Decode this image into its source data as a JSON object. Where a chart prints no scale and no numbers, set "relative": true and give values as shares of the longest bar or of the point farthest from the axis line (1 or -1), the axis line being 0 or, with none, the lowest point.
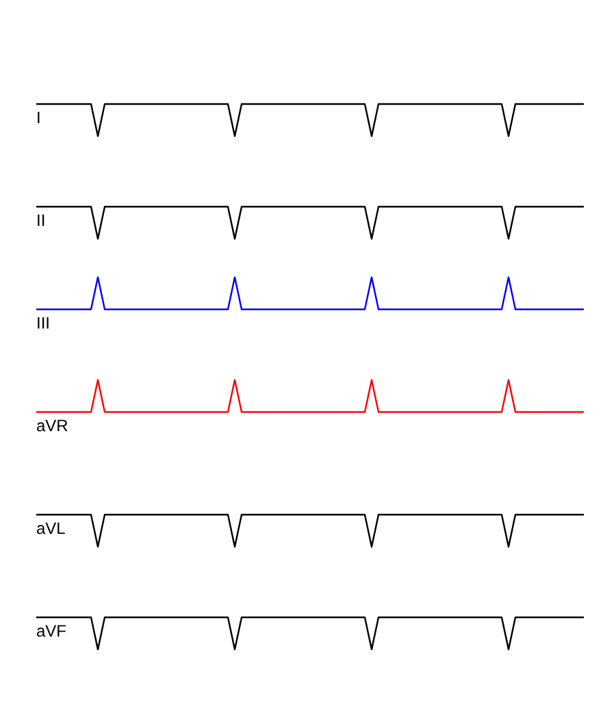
{
  "chart_data": [
    {
      "type": "line",
      "relative": true,
      "tick_labels": false,
      "grid": false,
      "categories": [
        null,
        null,
        null,
        null,
        null,
        null,
        null,
        null,
        null,
        null,
        null,
        null,
        null,
        null,
        null,
        null,
        null,
        null,
        null,
        null,
        null,
        null,
        null,
        null,
        null,
        null,
        null,
        null,
        null,
        null,
        null,
        null,
        null,
        null,
        null,
        null,
        null,
        null,
        null,
        null,
        null,
        null,
        null,
        null,
        null,
        null,
        null,
        null,
        null,
        null,
        null,
        null,
        null,
        null,
        null,
        null,
        null,
        null,
        null,
        null,
        null,
        null,
        null,
        null,
        null,
        null,
        null,
        null,
        null,
        null,
        null,
        null,
        null,
        null,
        null,
        null,
        null,
        null,
        null,
        null,
        null
      ],
      "series": [
        {
          "name": "I",
          "color": "#000000",
          "values": [
            1,
            1,
            1,
            1,
            1,
            1,
            1,
            1,
            1,
            0,
            1,
            1,
            1,
            1,
            1,
            1,
            1,
            1,
            1,
            1,
            1,
            1,
            1,
            1,
            1,
            1,
            1,
            1,
            1,
            0,
            1,
            1,
            1,
            1,
            1,
            1,
            1,
            1,
            1,
            1,
            1,
            1,
            1,
            1,
            1,
            1,
            1,
            1,
            1,
            0,
            1,
            1,
            1,
            1,
            1,
            1,
            1,
            1,
            1,
            1,
            1,
            1,
            1,
            1,
            1,
            1,
            1,
            1,
            1,
            0,
            1,
            1,
            1,
            1,
            1,
            1,
            1,
            1,
            1,
            1,
            1
          ]
        }
      ]
    },
    {
      "type": "line",
      "relative": true,
      "tick_labels": false,
      "grid": false,
      "categories": [
        null,
        null,
        null,
        null,
        null,
        null,
        null,
        null,
        null,
        null,
        null,
        null,
        null,
        null,
        null,
        null,
        null,
        null,
        null,
        null,
        null,
        null,
        null,
        null,
        null,
        null,
        null,
        null,
        null,
        null,
        null,
        null,
        null,
        null,
        null,
        null,
        null,
        null,
        null,
        null,
        null,
        null,
        null,
        null,
        null,
        null,
        null,
        null,
        null,
        null,
        null,
        null,
        null,
        null,
        null,
        null,
        null,
        null,
        null,
        null,
        null,
        null,
        null,
        null,
        null,
        null,
        null,
        null,
        null,
        null,
        null,
        null,
        null,
        null,
        null,
        null,
        null,
        null,
        null,
        null,
        null
      ],
      "series": [
        {
          "name": "II",
          "color": "#000000",
          "values": [
            1,
            1,
            1,
            1,
            1,
            1,
            1,
            1,
            1,
            0,
            1,
            1,
            1,
            1,
            1,
            1,
            1,
            1,
            1,
            1,
            1,
            1,
            1,
            1,
            1,
            1,
            1,
            1,
            1,
            0,
            1,
            1,
            1,
            1,
            1,
            1,
            1,
            1,
            1,
            1,
            1,
            1,
            1,
            1,
            1,
            1,
            1,
            1,
            1,
            0,
            1,
            1,
            1,
            1,
            1,
            1,
            1,
            1,
            1,
            1,
            1,
            1,
            1,
            1,
            1,
            1,
            1,
            1,
            1,
            0,
            1,
            1,
            1,
            1,
            1,
            1,
            1,
            1,
            1,
            1,
            1
          ]
        }
      ]
    },
    {
      "type": "line",
      "relative": true,
      "tick_labels": false,
      "grid": false,
      "categories": [
        null,
        null,
        null,
        null,
        null,
        null,
        null,
        null,
        null,
        null,
        null,
        null,
        null,
        null,
        null,
        null,
        null,
        null,
        null,
        null,
        null,
        null,
        null,
        null,
        null,
        null,
        null,
        null,
        null,
        null,
        null,
        null,
        null,
        null,
        null,
        null,
        null,
        null,
        null,
        null,
        null,
        null,
        null,
        null,
        null,
        null,
        null,
        null,
        null,
        null,
        null,
        null,
        null,
        null,
        null,
        null,
        null,
        null,
        null,
        null,
        null,
        null,
        null,
        null,
        null,
        null,
        null,
        null,
        null,
        null,
        null,
        null,
        null,
        null,
        null,
        null,
        null,
        null,
        null,
        null,
        null
      ],
      "series": [
        {
          "name": "III",
          "color": "#0000ff",
          "values": [
            0,
            0,
            0,
            0,
            0,
            0,
            0,
            0,
            0,
            1,
            0,
            0,
            0,
            0,
            0,
            0,
            0,
            0,
            0,
            0,
            0,
            0,
            0,
            0,
            0,
            0,
            0,
            0,
            0,
            1,
            0,
            0,
            0,
            0,
            0,
            0,
            0,
            0,
            0,
            0,
            0,
            0,
            0,
            0,
            0,
            0,
            0,
            0,
            0,
            1,
            0,
            0,
            0,
            0,
            0,
            0,
            0,
            0,
            0,
            0,
            0,
            0,
            0,
            0,
            0,
            0,
            0,
            0,
            0,
            1,
            0,
            0,
            0,
            0,
            0,
            0,
            0,
            0,
            0,
            0,
            0
          ]
        }
      ]
    },
    {
      "type": "line",
      "relative": true,
      "tick_labels": false,
      "grid": false,
      "categories": [
        null,
        null,
        null,
        null,
        null,
        null,
        null,
        null,
        null,
        null,
        null,
        null,
        null,
        null,
        null,
        null,
        null,
        null,
        null,
        null,
        null,
        null,
        null,
        null,
        null,
        null,
        null,
        null,
        null,
        null,
        null,
        null,
        null,
        null,
        null,
        null,
        null,
        null,
        null,
        null,
        null,
        null,
        null,
        null,
        null,
        null,
        null,
        null,
        null,
        null,
        null,
        null,
        null,
        null,
        null,
        null,
        null,
        null,
        null,
        null,
        null,
        null,
        null,
        null,
        null,
        null,
        null,
        null,
        null,
        null,
        null,
        null,
        null,
        null,
        null,
        null,
        null,
        null,
        null,
        null,
        null
      ],
      "series": [
        {
          "name": "aVR",
          "color": "#ff0000",
          "values": [
            0,
            0,
            0,
            0,
            0,
            0,
            0,
            0,
            0,
            1,
            0,
            0,
            0,
            0,
            0,
            0,
            0,
            0,
            0,
            0,
            0,
            0,
            0,
            0,
            0,
            0,
            0,
            0,
            0,
            1,
            0,
            0,
            0,
            0,
            0,
            0,
            0,
            0,
            0,
            0,
            0,
            0,
            0,
            0,
            0,
            0,
            0,
            0,
            0,
            1,
            0,
            0,
            0,
            0,
            0,
            0,
            0,
            0,
            0,
            0,
            0,
            0,
            0,
            0,
            0,
            0,
            0,
            0,
            0,
            1,
            0,
            0,
            0,
            0,
            0,
            0,
            0,
            0,
            0,
            0,
            0
          ]
        }
      ]
    },
    {
      "type": "line",
      "relative": true,
      "tick_labels": false,
      "grid": false,
      "categories": [
        null,
        null,
        null,
        null,
        null,
        null,
        null,
        null,
        null,
        null,
        null,
        null,
        null,
        null,
        null,
        null,
        null,
        null,
        null,
        null,
        null,
        null,
        null,
        null,
        null,
        null,
        null,
        null,
        null,
        null,
        null,
        null,
        null,
        null,
        null,
        null,
        null,
        null,
        null,
        null,
        null,
        null,
        null,
        null,
        null,
        null,
        null,
        null,
        null,
        null,
        null,
        null,
        null,
        null,
        null,
        null,
        null,
        null,
        null,
        null,
        null,
        null,
        null,
        null,
        null,
        null,
        null,
        null,
        null,
        null,
        null,
        null,
        null,
        null,
        null,
        null,
        null,
        null,
        null,
        null,
        null
      ],
      "series": [
        {
          "name": "aVL",
          "color": "#000000",
          "values": [
            1,
            1,
            1,
            1,
            1,
            1,
            1,
            1,
            1,
            0,
            1,
            1,
            1,
            1,
            1,
            1,
            1,
            1,
            1,
            1,
            1,
            1,
            1,
            1,
            1,
            1,
            1,
            1,
            1,
            0,
            1,
            1,
            1,
            1,
            1,
            1,
            1,
            1,
            1,
            1,
            1,
            1,
            1,
            1,
            1,
            1,
            1,
            1,
            1,
            0,
            1,
            1,
            1,
            1,
            1,
            1,
            1,
            1,
            1,
            1,
            1,
            1,
            1,
            1,
            1,
            1,
            1,
            1,
            1,
            0,
            1,
            1,
            1,
            1,
            1,
            1,
            1,
            1,
            1,
            1,
            1
          ]
        }
      ]
    },
    {
      "type": "line",
      "relative": true,
      "tick_labels": false,
      "grid": false,
      "categories": [
        null,
        null,
        null,
        null,
        null,
        null,
        null,
        null,
        null,
        null,
        null,
        null,
        null,
        null,
        null,
        null,
        null,
        null,
        null,
        null,
        null,
        null,
        null,
        null,
        null,
        null,
        null,
        null,
        null,
        null,
        null,
        null,
        null,
        null,
        null,
        null,
        null,
        null,
        null,
        null,
        null,
        null,
        null,
        null,
        null,
        null,
        null,
        null,
        null,
        null,
        null,
        null,
        null,
        null,
        null,
        null,
        null,
        null,
        null,
        null,
        null,
        null,
        null,
        null,
        null,
        null,
        null,
        null,
        null,
        null,
        null,
        null,
        null,
        null,
        null,
        null,
        null,
        null,
        null,
        null,
        null
      ],
      "series": [
        {
          "name": "aVF",
          "color": "#000000",
          "values": [
            1,
            1,
            1,
            1,
            1,
            1,
            1,
            1,
            1,
            0,
            1,
            1,
            1,
            1,
            1,
            1,
            1,
            1,
            1,
            1,
            1,
            1,
            1,
            1,
            1,
            1,
            1,
            1,
            1,
            0,
            1,
            1,
            1,
            1,
            1,
            1,
            1,
            1,
            1,
            1,
            1,
            1,
            1,
            1,
            1,
            1,
            1,
            1,
            1,
            0,
            1,
            1,
            1,
            1,
            1,
            1,
            1,
            1,
            1,
            1,
            1,
            1,
            1,
            1,
            1,
            1,
            1,
            1,
            1,
            0,
            1,
            1,
            1,
            1,
            1,
            1,
            1,
            1,
            1,
            1,
            1
          ]
        }
      ]
    }
  ]
}
